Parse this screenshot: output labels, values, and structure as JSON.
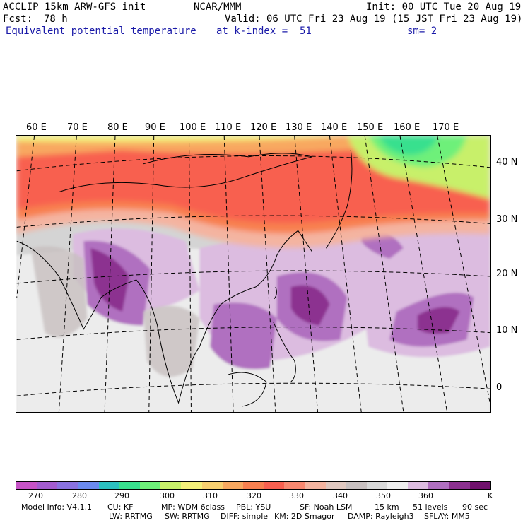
{
  "header": {
    "model": "ACCLIP 15km ARW-GFS init",
    "org": "NCAR/MMM",
    "init": "Init: 00 UTC Tue 20 Aug 19",
    "fcst_label": "Fcst:",
    "fcst_value": "78 h",
    "valid": "Valid: 06 UTC Fri 23 Aug 19 (15 JST Fri 23 Aug 19)",
    "field": "Equivalent potential temperature",
    "level": "at k-index =  51",
    "smoothing": "sm= 2"
  },
  "map": {
    "lon_labels": [
      "60 E",
      "70 E",
      "80 E",
      "90 E",
      "100 E",
      "110 E",
      "120 E",
      "130 E",
      "140 E",
      "150 E",
      "160 E",
      "170 E"
    ],
    "lat_labels": [
      "40 N",
      "30 N",
      "20 N",
      "10 N",
      "0"
    ]
  },
  "colorbar": {
    "colors": [
      "#c653c6",
      "#a35ccf",
      "#8a72e0",
      "#6b8aee",
      "#2cc0c0",
      "#38e08e",
      "#6ef07a",
      "#c8f06a",
      "#f4f07a",
      "#f8d070",
      "#f8a860",
      "#f88050",
      "#f86050",
      "#f88870",
      "#f4b4a0",
      "#e0c8c0",
      "#c8c0c0",
      "#d8d8d8",
      "#eeeeee",
      "#dcbce0",
      "#b070c0",
      "#8c3090",
      "#70106c"
    ],
    "ticks": [
      "270",
      "280",
      "290",
      "300",
      "310",
      "320",
      "330",
      "340",
      "350",
      "360",
      "K"
    ]
  },
  "footer": {
    "line1": [
      "Model Info: V4.1.1",
      "CU: KF",
      "MP: WDM 6class",
      "PBL: YSU",
      "SF: Noah LSM",
      "15 km",
      "51 levels",
      "90 sec"
    ],
    "line2": [
      "LW: RRTMG",
      "SW: RRTMG",
      "DIFF: simple",
      "KM: 2D Smagor",
      "DAMP: Rayleigh3",
      "SFLAY: MM5"
    ]
  }
}
